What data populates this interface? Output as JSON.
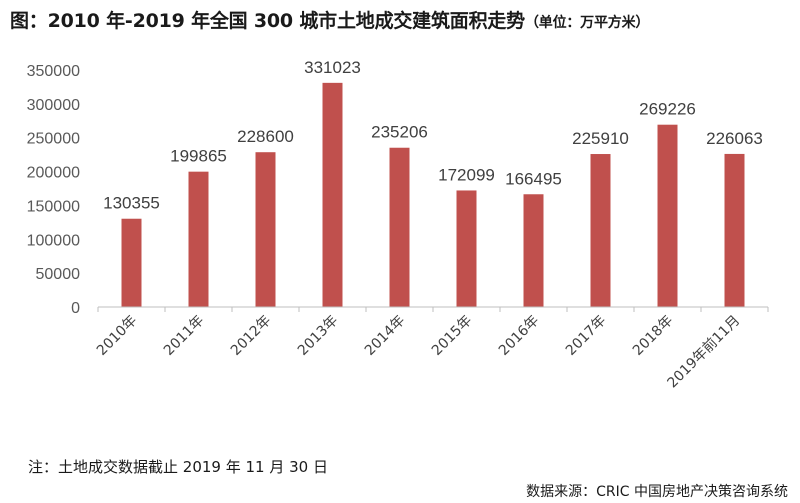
{
  "title": {
    "main": "图：2010 年-2019 年全国 300 城市土地成交建筑面积走势",
    "unit": "（单位：万平方米）"
  },
  "note": "注：土地成交数据截止 2019 年 11 月 30 日",
  "source": "数据来源：CRIC 中国房地产决策咨询系统",
  "colors": {
    "bar": "#c0504d",
    "axis": "#bfbfbf"
  },
  "chart_data": {
    "type": "bar",
    "categories": [
      "2010年",
      "2011年",
      "2012年",
      "2013年",
      "2014年",
      "2015年",
      "2016年",
      "2017年",
      "2018年",
      "2019年前11月"
    ],
    "values": [
      130355,
      199865,
      228600,
      331023,
      235206,
      172099,
      166495,
      225910,
      269226,
      226063
    ],
    "ylim": [
      0,
      350000
    ],
    "yticks": [
      0,
      50000,
      100000,
      150000,
      200000,
      250000,
      300000,
      350000
    ],
    "grid": false,
    "legend": "none"
  }
}
